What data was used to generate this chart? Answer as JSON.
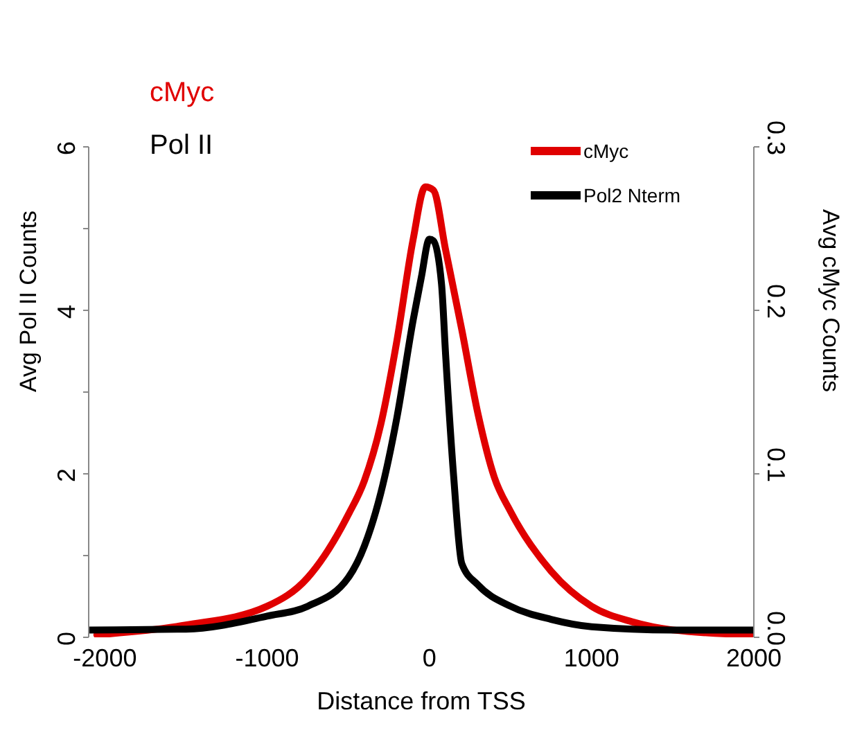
{
  "chart_data": {
    "type": "line",
    "xlabel": "Distance from TSS",
    "ylabel": "Avg Pol II Counts",
    "y2label": "Avg cMyc Counts",
    "annotations": [
      "cMyc",
      "Pol II"
    ],
    "xlim": [
      -2100,
      2000
    ],
    "xticks": [
      -2000,
      -1000,
      0,
      1000,
      2000
    ],
    "ylim": [
      0,
      6
    ],
    "yticks": [
      0,
      {
        "value": 1,
        "label": null
      },
      2,
      {
        "value": 3,
        "label": null
      },
      4,
      {
        "value": 5,
        "label": null
      },
      6
    ],
    "y2lim": [
      0,
      0.3
    ],
    "y2ticks": [
      {
        "value": 0,
        "label": "0.0"
      },
      {
        "value": 0.1,
        "label": "0.1"
      },
      {
        "value": 0.2,
        "label": "0.2"
      },
      {
        "value": 0.3,
        "label": "0.3"
      }
    ],
    "legend": "top right",
    "grid": false,
    "marker": "none",
    "line_style": "solid",
    "series": [
      {
        "name": "cMyc",
        "color": "#e00000",
        "axis": "y2",
        "x": [
          -2050,
          -1500,
          -1000,
          -750,
          -500,
          -400,
          -300,
          -200,
          -100,
          -25,
          25,
          100,
          200,
          300,
          400,
          500,
          750,
          1000,
          1250,
          1500,
          2000
        ],
        "values": [
          0.0015,
          0.0075,
          0.019,
          0.0365,
          0.075,
          0.096,
          0.13,
          0.1815,
          0.2435,
          0.2755,
          0.2735,
          0.237,
          0.188,
          0.1365,
          0.098,
          0.077,
          0.0405,
          0.019,
          0.0095,
          0.0045,
          0.0015
        ]
      },
      {
        "name": "Pol2 Nterm",
        "color": "#000000",
        "axis": "y",
        "x": [
          -2100,
          -1500,
          -1000,
          -750,
          -500,
          -400,
          -300,
          -200,
          -100,
          -50,
          0,
          25,
          75,
          100,
          150,
          200,
          300,
          500,
          750,
          1000,
          1500,
          2000
        ],
        "values": [
          0.09,
          0.1,
          0.26,
          0.38,
          0.73,
          1.12,
          1.76,
          2.69,
          3.88,
          4.4,
          4.87,
          4.85,
          4.32,
          3.46,
          1.96,
          0.9,
          0.64,
          0.38,
          0.22,
          0.13,
          0.09,
          0.09
        ]
      }
    ]
  }
}
